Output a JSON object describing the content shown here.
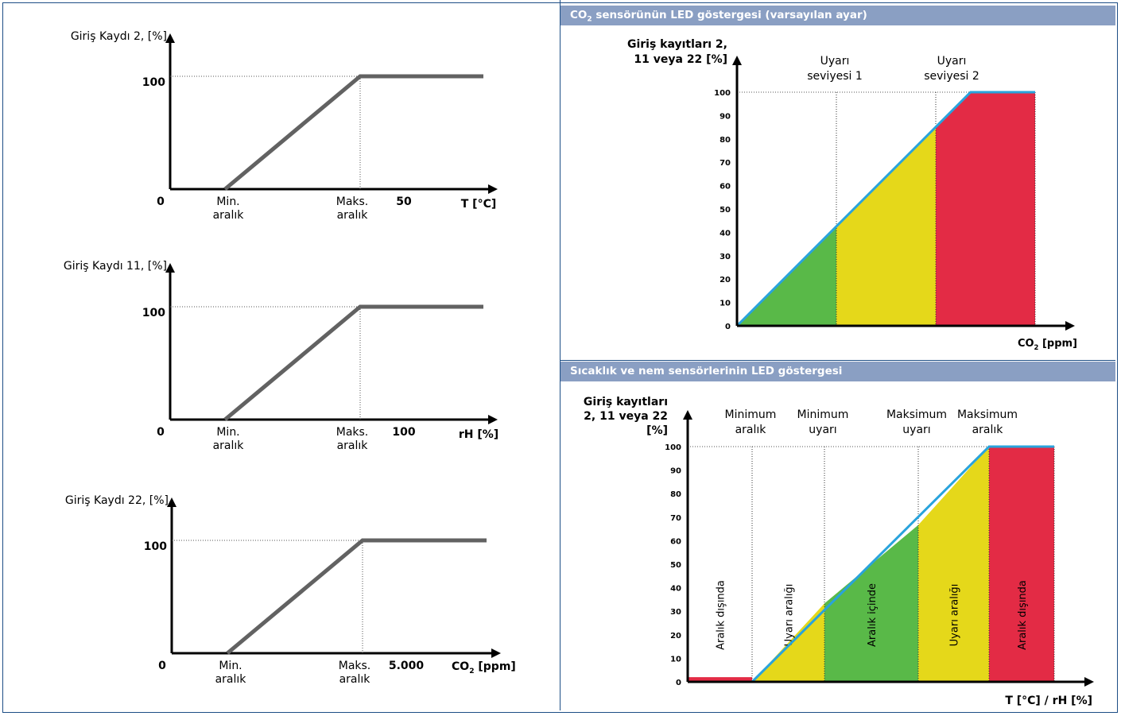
{
  "panels": {
    "co2_title_prefix": "CO",
    "co2_title_sub": "2",
    "co2_title_rest": " sensörünün LED göstergesi (varsayılan ayar)",
    "th_title": "Sıcaklık ve nem sensörlerinin LED göstergesi"
  },
  "chart_data": [
    {
      "type": "line",
      "ylabel": "Giriş Kaydı 2, [%]",
      "xlabel": "T [°C]",
      "x_ticks": [
        {
          "label": "0",
          "x": 0
        },
        {
          "label": "Min.\naralık",
          "x": "Min. aralık"
        },
        {
          "label": "Maks.\naralık",
          "x": "Maks. aralık"
        },
        {
          "label": "50",
          "x": 50
        }
      ],
      "y_ticks": [
        "100"
      ],
      "series": [
        {
          "points": [
            [
              "Min. aralık",
              0
            ],
            [
              "Maks. aralık",
              100
            ],
            [
              "end",
              100
            ]
          ]
        }
      ]
    },
    {
      "type": "line",
      "ylabel": "Giriş Kaydı 11, [%]",
      "xlabel": "rH [%]",
      "x_ticks": [
        {
          "label": "0",
          "x": 0
        },
        {
          "label": "Min.\naralık",
          "x": "Min. aralık"
        },
        {
          "label": "Maks.\naralık",
          "x": "Maks. aralık"
        },
        {
          "label": "100",
          "x": 100
        }
      ],
      "y_ticks": [
        "100"
      ],
      "series": [
        {
          "points": [
            [
              "Min. aralık",
              0
            ],
            [
              "Maks. aralık",
              100
            ],
            [
              "end",
              100
            ]
          ]
        }
      ]
    },
    {
      "type": "line",
      "ylabel": "Giriş Kaydı 22, [%]",
      "xlabel_prefix": "CO",
      "xlabel_sub": "2",
      "xlabel_rest": " [ppm]",
      "x_ticks": [
        {
          "label": "0",
          "x": 0
        },
        {
          "label": "Min.\naralık",
          "x": "Min. aralık"
        },
        {
          "label": "Maks.\naralık",
          "x": "Maks. aralık"
        },
        {
          "label": "5.000",
          "x": 5000
        }
      ],
      "y_ticks": [
        "100"
      ],
      "series": [
        {
          "points": [
            [
              "Min. aralık",
              0
            ],
            [
              "Maks. aralık",
              100
            ],
            [
              "end",
              100
            ]
          ]
        }
      ]
    },
    {
      "type": "area",
      "ylabel": "Giriş kayıtları 2,\n11 veya 22 [%]",
      "xlabel_prefix": "CO",
      "xlabel_sub": "2",
      "xlabel_rest": " [ppm]",
      "yticks": [
        0,
        10,
        20,
        30,
        40,
        50,
        60,
        70,
        80,
        90,
        100
      ],
      "ylim": [
        0,
        100
      ],
      "markers": [
        {
          "label": "Uyarı\nseviyesi 1",
          "x": 1
        },
        {
          "label": "Uyarı\nseviyesi 2",
          "x": 2
        }
      ],
      "line": [
        [
          0,
          0
        ],
        [
          2.35,
          100
        ],
        [
          3,
          100
        ]
      ],
      "bands": [
        {
          "from": 0,
          "to": 1,
          "color": "#59b948"
        },
        {
          "from": 1,
          "to": 2,
          "color": "#e5d81a"
        },
        {
          "from": 2,
          "to": 3,
          "color": "#e32b45"
        }
      ]
    },
    {
      "type": "area",
      "ylabel": "Giriş kayıtları\n2, 11 veya 22\n[%]",
      "xlabel": "T [°C] / rH [%]",
      "yticks": [
        0,
        10,
        20,
        30,
        40,
        50,
        60,
        70,
        80,
        90,
        100
      ],
      "ylim": [
        0,
        100
      ],
      "markers": [
        {
          "label": "Minimum\naralık",
          "x": 1
        },
        {
          "label": "Minimum\nuyarı",
          "x": 2
        },
        {
          "label": "Maksimum\nuyarı",
          "x": 3
        },
        {
          "label": "Maksimum\naralık",
          "x": 4
        }
      ],
      "line": [
        [
          0,
          0
        ],
        [
          1,
          0
        ],
        [
          4,
          100
        ],
        [
          5,
          100
        ]
      ],
      "bands": [
        {
          "from": 0,
          "to": 1,
          "color": "#e32b45",
          "label": "Aralık dışında",
          "level": 2
        },
        {
          "from": 1,
          "to": 2,
          "color": "#e5d81a",
          "label": "Uyarı aralığı"
        },
        {
          "from": 2,
          "to": 3,
          "color": "#59b948",
          "label": "Aralık içinde"
        },
        {
          "from": 3,
          "to": 4,
          "color": "#e5d81a",
          "label": "Uyarı aralığı"
        },
        {
          "from": 4,
          "to": 5,
          "color": "#e32b45",
          "label": "Aralık dışında"
        }
      ]
    }
  ],
  "colors": {
    "axis": "#000000",
    "line_gray": "#626262",
    "line_blue": "#29a3dc",
    "green": "#59b948",
    "yellow": "#e5d81a",
    "red": "#e32b45",
    "header": "#8a9fc3",
    "border": "#1d4e86"
  }
}
